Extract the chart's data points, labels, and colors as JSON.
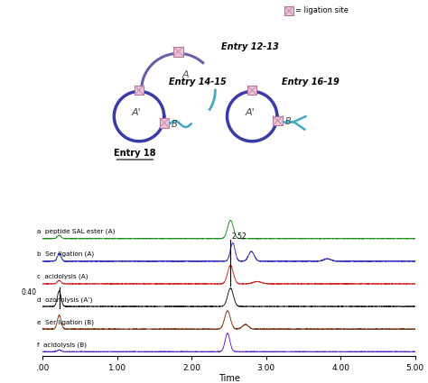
{
  "background": "#ffffff",
  "legend_label": "= ligation site",
  "box_color": "#f0c0d8",
  "box_edge_color": "#b07090",
  "box_hatch_color": "#c090b0",
  "circle_color": "#3a3aaa",
  "arc_purple_color": "#6b5fa5",
  "arc_tail_color": "#5b4fa0",
  "tail_color": "#40aac0",
  "entry1213_label": "Entry 12-13",
  "entry1415_label": "Entry 14-15",
  "entry1619_label": "Entry 16-19",
  "entry18_label": "Entry 18",
  "traces": [
    {
      "label": "a  peptide SAL ester (A)",
      "color": "#1a8c1a"
    },
    {
      "label": "b  Ser ligation (A)",
      "color": "#3535b5"
    },
    {
      "label": "c  acidolysis (A)",
      "color": "#cc2020"
    },
    {
      "label": "d  ozonolysis (A’)",
      "color": "#111111"
    },
    {
      "label": "e  Ser ligation (B)",
      "color": "#7b3010"
    },
    {
      "label": "f  acidolysis (B)",
      "color": "#5515bb"
    }
  ],
  "xmin": 0.0,
  "xmax": 5.0,
  "xtick_labels": [
    ".00",
    "1.00",
    "2.00",
    "3.00",
    "4.00",
    "5.00"
  ],
  "xtick_vals": [
    0.0,
    1.0,
    2.0,
    3.0,
    4.0,
    5.0
  ],
  "xlabel": "Time",
  "annotation_252": "2.52",
  "annotation_040": "0.40"
}
